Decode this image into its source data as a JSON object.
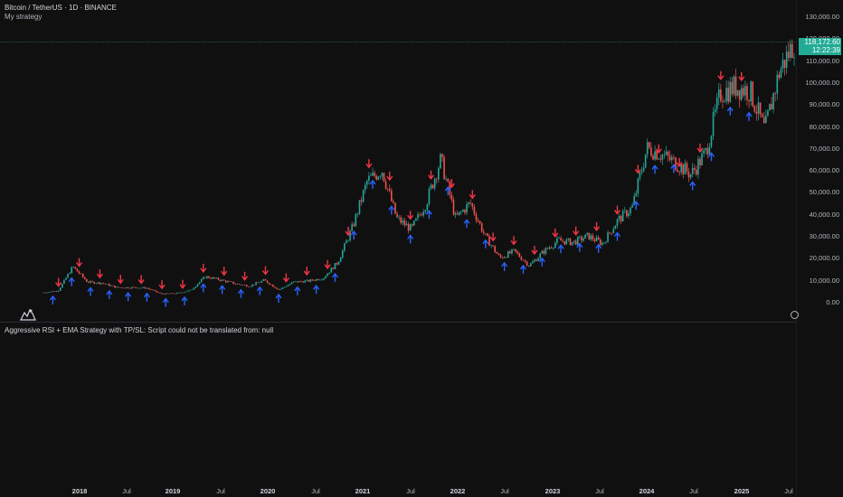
{
  "header": {
    "title": "Bitcoin / TetherUS · 1D · BINANCE",
    "strategy": "My strategy"
  },
  "price_tag": {
    "price": "118,172.60",
    "countdown": "12:22:39"
  },
  "y_axis": [
    "130,000.00",
    "120,000.00",
    "110,000.00",
    "100,000.00",
    "90,000.00",
    "80,000.00",
    "70,000.00",
    "60,000.00",
    "50,000.00",
    "40,000.00",
    "30,000.00",
    "20,000.00",
    "10,000.00",
    "0.00"
  ],
  "x_axis": [
    {
      "label": "2018",
      "year": true
    },
    {
      "label": "Jul",
      "year": false
    },
    {
      "label": "2019",
      "year": true
    },
    {
      "label": "Jul",
      "year": false
    },
    {
      "label": "2020",
      "year": true
    },
    {
      "label": "Jul",
      "year": false
    },
    {
      "label": "2021",
      "year": true
    },
    {
      "label": "Jul",
      "year": false
    },
    {
      "label": "2022",
      "year": true
    },
    {
      "label": "Jul",
      "year": false
    },
    {
      "label": "2023",
      "year": true
    },
    {
      "label": "Jul",
      "year": false
    },
    {
      "label": "2024",
      "year": true
    },
    {
      "label": "Jul",
      "year": false
    },
    {
      "label": "2025",
      "year": true
    },
    {
      "label": "Jul",
      "year": false
    }
  ],
  "error_message": "Aggressive RSI + EMA Strategy with TP/SL: Script could not be translated from: null",
  "colors": {
    "up": "#26a69a",
    "down": "#ef5350",
    "buy": "#2962ff",
    "sell": "#f23645",
    "price_line": "#22ab94"
  },
  "chart_data": {
    "type": "line",
    "symbol": "BTCUSDT",
    "interval": "1D",
    "ylim": [
      0,
      130000
    ],
    "x": [
      "2017-08",
      "2017-10",
      "2017-12",
      "2018-02",
      "2018-04",
      "2018-06",
      "2018-08",
      "2018-10",
      "2018-12",
      "2019-02",
      "2019-04",
      "2019-06",
      "2019-08",
      "2019-10",
      "2019-12",
      "2020-02",
      "2020-03",
      "2020-05",
      "2020-07",
      "2020-09",
      "2020-11",
      "2021-01",
      "2021-02",
      "2021-04",
      "2021-05",
      "2021-07",
      "2021-09",
      "2021-11",
      "2022-01",
      "2022-03",
      "2022-05",
      "2022-06",
      "2022-08",
      "2022-11",
      "2023-01",
      "2023-03",
      "2023-05",
      "2023-07",
      "2023-09",
      "2023-11",
      "2024-01",
      "2024-03",
      "2024-05",
      "2024-07",
      "2024-08",
      "2024-10",
      "2024-11",
      "2024-12",
      "2025-02",
      "2025-04",
      "2025-05",
      "2025-07"
    ],
    "series": [
      {
        "values": [
          4200,
          5000,
          16000,
          9000,
          8500,
          6500,
          6500,
          6300,
          3600,
          3800,
          5200,
          11500,
          10000,
          8300,
          7200,
          9800,
          5500,
          9000,
          9500,
          10800,
          18000,
          34000,
          55000,
          60000,
          38000,
          33000,
          45000,
          65000,
          38000,
          45000,
          30000,
          20000,
          23000,
          16500,
          23000,
          28000,
          27000,
          30000,
          26500,
          37000,
          43000,
          70000,
          67000,
          63000,
          58000,
          68000,
          95000,
          98000,
          96000,
          78000,
          105000,
          118000
        ]
      }
    ],
    "buy_signal_count": 38,
    "sell_signal_count": 34
  }
}
